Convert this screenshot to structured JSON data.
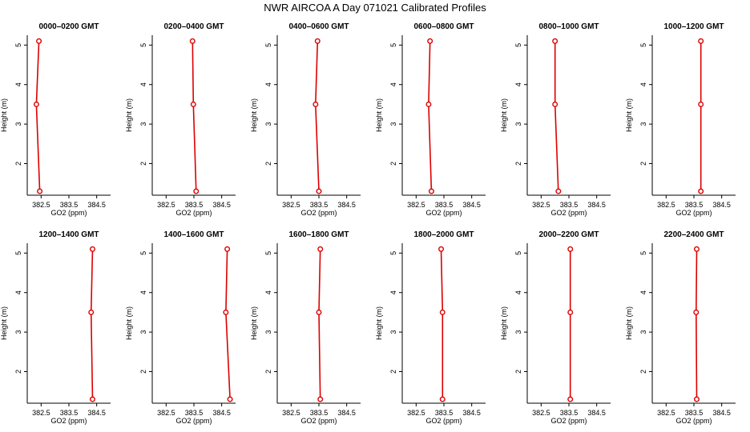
{
  "figure": {
    "title": "NWR AIRCOA A  Day 071021  Calibrated Profiles"
  },
  "chart_data": [
    {
      "type": "line",
      "title": "0000–0200 GMT",
      "xlabel": "GO2 (ppm)",
      "ylabel": "Height (m)",
      "xlim": [
        382.0,
        385.0
      ],
      "ylim": [
        1.2,
        5.25
      ],
      "xticks": [
        "382.5",
        "383.5",
        "384.5"
      ],
      "yticks": [
        "2",
        "3",
        "4",
        "5"
      ],
      "series": [
        {
          "x": [
            382.42,
            382.33,
            382.45
          ],
          "y": [
            5.1,
            3.5,
            1.3
          ]
        }
      ]
    },
    {
      "type": "line",
      "title": "0200–0400 GMT",
      "xlabel": "GO2 (ppm)",
      "ylabel": "Height (m)",
      "xlim": [
        382.0,
        385.0
      ],
      "ylim": [
        1.2,
        5.25
      ],
      "xticks": [
        "382.5",
        "383.5",
        "384.5"
      ],
      "yticks": [
        "2",
        "3",
        "4",
        "5"
      ],
      "series": [
        {
          "x": [
            383.45,
            383.48,
            383.58
          ],
          "y": [
            5.1,
            3.5,
            1.3
          ]
        }
      ]
    },
    {
      "type": "line",
      "title": "0400–0600 GMT",
      "xlabel": "GO2 (ppm)",
      "ylabel": "Height (m)",
      "xlim": [
        382.0,
        385.0
      ],
      "ylim": [
        1.2,
        5.25
      ],
      "xticks": [
        "382.5",
        "383.5",
        "384.5"
      ],
      "yticks": [
        "2",
        "3",
        "4",
        "5"
      ],
      "series": [
        {
          "x": [
            383.45,
            383.38,
            383.5
          ],
          "y": [
            5.1,
            3.5,
            1.3
          ]
        }
      ]
    },
    {
      "type": "line",
      "title": "0600–0800 GMT",
      "xlabel": "GO2 (ppm)",
      "ylabel": "Height (m)",
      "xlim": [
        382.0,
        385.0
      ],
      "ylim": [
        1.2,
        5.25
      ],
      "xticks": [
        "382.5",
        "383.5",
        "384.5"
      ],
      "yticks": [
        "2",
        "3",
        "4",
        "5"
      ],
      "series": [
        {
          "x": [
            383.0,
            382.95,
            383.05
          ],
          "y": [
            5.1,
            3.5,
            1.3
          ]
        }
      ]
    },
    {
      "type": "line",
      "title": "0800–1000 GMT",
      "xlabel": "GO2 (ppm)",
      "ylabel": "Height (m)",
      "xlim": [
        382.0,
        385.0
      ],
      "ylim": [
        1.2,
        5.25
      ],
      "xticks": [
        "382.5",
        "383.5",
        "384.5"
      ],
      "yticks": [
        "2",
        "3",
        "4",
        "5"
      ],
      "series": [
        {
          "x": [
            383.0,
            383.0,
            383.12
          ],
          "y": [
            5.1,
            3.5,
            1.3
          ]
        }
      ]
    },
    {
      "type": "line",
      "title": "1000–1200 GMT",
      "xlabel": "GO2 (ppm)",
      "ylabel": "Height (m)",
      "xlim": [
        382.0,
        385.0
      ],
      "ylim": [
        1.2,
        5.25
      ],
      "xticks": [
        "382.5",
        "383.5",
        "384.5"
      ],
      "yticks": [
        "2",
        "3",
        "4",
        "5"
      ],
      "series": [
        {
          "x": [
            383.75,
            383.75,
            383.75
          ],
          "y": [
            5.1,
            3.5,
            1.3
          ]
        }
      ]
    },
    {
      "type": "line",
      "title": "1200–1400 GMT",
      "xlabel": "GO2 (ppm)",
      "ylabel": "Height (m)",
      "xlim": [
        382.0,
        385.0
      ],
      "ylim": [
        1.2,
        5.25
      ],
      "xticks": [
        "382.5",
        "383.5",
        "384.5"
      ],
      "yticks": [
        "2",
        "3",
        "4",
        "5"
      ],
      "series": [
        {
          "x": [
            384.35,
            384.3,
            384.35
          ],
          "y": [
            5.1,
            3.5,
            1.3
          ]
        }
      ]
    },
    {
      "type": "line",
      "title": "1400–1600 GMT",
      "xlabel": "GO2 (ppm)",
      "ylabel": "Height (m)",
      "xlim": [
        382.0,
        385.0
      ],
      "ylim": [
        1.2,
        5.25
      ],
      "xticks": [
        "382.5",
        "383.5",
        "384.5"
      ],
      "yticks": [
        "2",
        "3",
        "4",
        "5"
      ],
      "series": [
        {
          "x": [
            384.7,
            384.65,
            384.8
          ],
          "y": [
            5.1,
            3.5,
            1.3
          ]
        }
      ]
    },
    {
      "type": "line",
      "title": "1600–1800 GMT",
      "xlabel": "GO2 (ppm)",
      "ylabel": "Height (m)",
      "xlim": [
        382.0,
        385.0
      ],
      "ylim": [
        1.2,
        5.25
      ],
      "xticks": [
        "382.5",
        "383.5",
        "384.5"
      ],
      "yticks": [
        "2",
        "3",
        "4",
        "5"
      ],
      "series": [
        {
          "x": [
            383.55,
            383.5,
            383.55
          ],
          "y": [
            5.1,
            3.5,
            1.3
          ]
        }
      ]
    },
    {
      "type": "line",
      "title": "1800–2000 GMT",
      "xlabel": "GO2 (ppm)",
      "ylabel": "Height (m)",
      "xlim": [
        382.0,
        385.0
      ],
      "ylim": [
        1.2,
        5.25
      ],
      "xticks": [
        "382.5",
        "383.5",
        "384.5"
      ],
      "yticks": [
        "2",
        "3",
        "4",
        "5"
      ],
      "series": [
        {
          "x": [
            383.4,
            383.45,
            383.45
          ],
          "y": [
            5.1,
            3.5,
            1.3
          ]
        }
      ]
    },
    {
      "type": "line",
      "title": "2000–2200 GMT",
      "xlabel": "GO2 (ppm)",
      "ylabel": "Height (m)",
      "xlim": [
        382.0,
        385.0
      ],
      "ylim": [
        1.2,
        5.25
      ],
      "xticks": [
        "382.5",
        "383.5",
        "384.5"
      ],
      "yticks": [
        "2",
        "3",
        "4",
        "5"
      ],
      "series": [
        {
          "x": [
            383.55,
            383.55,
            383.55
          ],
          "y": [
            5.1,
            3.5,
            1.3
          ]
        }
      ]
    },
    {
      "type": "line",
      "title": "2200–2400 GMT",
      "xlabel": "GO2 (ppm)",
      "ylabel": "Height (m)",
      "xlim": [
        382.0,
        385.0
      ],
      "ylim": [
        1.2,
        5.25
      ],
      "xticks": [
        "382.5",
        "383.5",
        "384.5"
      ],
      "yticks": [
        "2",
        "3",
        "4",
        "5"
      ],
      "series": [
        {
          "x": [
            383.6,
            383.58,
            383.6
          ],
          "y": [
            5.1,
            3.5,
            1.3
          ]
        }
      ]
    }
  ],
  "colors": {
    "series_line": "#dd0000",
    "axis": "#000000"
  }
}
